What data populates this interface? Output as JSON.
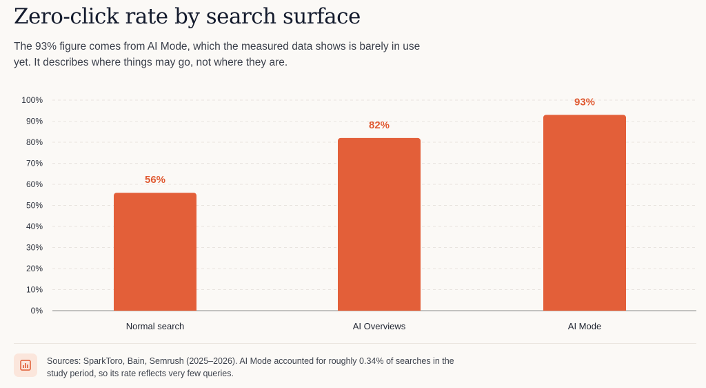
{
  "header": {
    "title": "Zero-click rate by search surface",
    "subtitle": "The 93% figure comes from AI Mode, which the measured data shows is barely in use yet. It describes where things may go, not where they are."
  },
  "chart_data": {
    "type": "bar",
    "categories": [
      "Normal search",
      "AI Overviews",
      "AI Mode"
    ],
    "values": [
      56,
      82,
      93
    ],
    "data_labels": [
      "56%",
      "82%",
      "93%"
    ],
    "ylim": [
      0,
      100
    ],
    "yticks": [
      0,
      10,
      20,
      30,
      40,
      50,
      60,
      70,
      80,
      90,
      100
    ],
    "ytick_labels": [
      "0%",
      "10%",
      "20%",
      "30%",
      "40%",
      "50%",
      "60%",
      "70%",
      "80%",
      "90%",
      "100%"
    ],
    "xlabel": "",
    "ylabel": "",
    "grid": true,
    "legend": "none",
    "colors": {
      "bar": "#e35f39",
      "label": "#e05a32",
      "grid": "#e8e4df",
      "axis": "#8a8a8a"
    }
  },
  "footer": {
    "icon": "bar-chart-icon",
    "source_note": "Sources: SparkToro, Bain, Semrush (2025–2026). AI Mode accounted for roughly 0.34% of searches in the study period, so its rate reflects very few queries."
  }
}
